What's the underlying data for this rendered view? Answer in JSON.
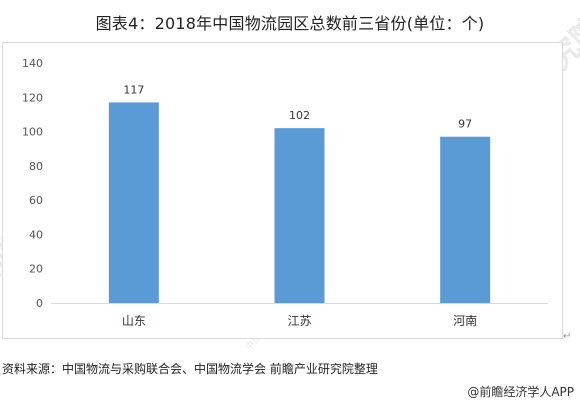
{
  "title": "图表4：2018年中国物流园区总数前三省份(单位：个)",
  "source": "资料来源：中国物流与采购联合会、中国物流学会 前瞻产业研究院整理",
  "brand": "@前瞻经济学人APP",
  "watermark": {
    "text": "前瞻产业研究院",
    "subtext": "中国产业咨询领导者"
  },
  "colors": {
    "bar": "#5b9bd5",
    "axis_text": "#555555",
    "label_text": "#333333",
    "frame": "#d9d9d9"
  },
  "chart_data": {
    "type": "bar",
    "title": "图表4：2018年中国物流园区总数前三省份(单位：个)",
    "categories": [
      "山东",
      "江苏",
      "河南"
    ],
    "values": [
      117,
      102,
      97
    ],
    "data_labels": [
      "117",
      "102",
      "97"
    ],
    "ylim": [
      0,
      140
    ],
    "yticks": [
      0,
      20,
      40,
      60,
      80,
      100,
      120,
      140
    ],
    "grid": false,
    "legend": "none"
  }
}
